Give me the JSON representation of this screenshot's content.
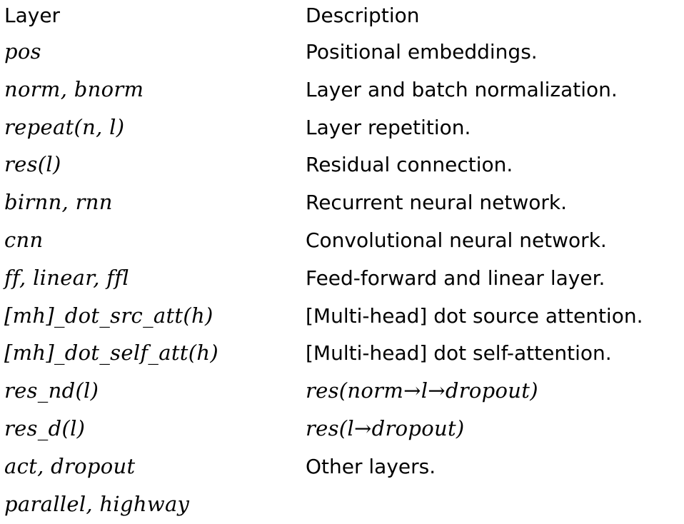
{
  "header": {
    "layer": "Layer",
    "description": "Description"
  },
  "rows": [
    {
      "layer": "pos",
      "description": "Positional embeddings.",
      "description_style": "text"
    },
    {
      "layer": "norm, bnorm",
      "description": "Layer and batch normalization.",
      "description_style": "text"
    },
    {
      "layer": "repeat(n, l)",
      "description": "Layer repetition.",
      "description_style": "text"
    },
    {
      "layer": "res(l)",
      "description": "Residual connection.",
      "description_style": "text"
    },
    {
      "layer": "birnn, rnn",
      "description": "Recurrent neural network.",
      "description_style": "text"
    },
    {
      "layer": "cnn",
      "description": "Convolutional neural network.",
      "description_style": "text"
    },
    {
      "layer": "ff, linear, ffl",
      "description": "Feed-forward and linear layer.",
      "description_style": "text"
    },
    {
      "layer": "[mh]_dot_src_att(h)",
      "description": "[Multi-head] dot source attention.",
      "description_style": "text"
    },
    {
      "layer": "[mh]_dot_self_att(h)",
      "description": "[Multi-head] dot self-attention.",
      "description_style": "text"
    },
    {
      "layer": "res_nd(l)",
      "description": "res(norm→l→dropout)",
      "description_style": "math"
    },
    {
      "layer": "res_d(l)",
      "description": "res(l→dropout)",
      "description_style": "math"
    },
    {
      "layer": "act, dropout",
      "description": "Other layers.",
      "description_style": "text"
    },
    {
      "layer": "parallel, highway",
      "description": "",
      "description_style": "text"
    }
  ]
}
